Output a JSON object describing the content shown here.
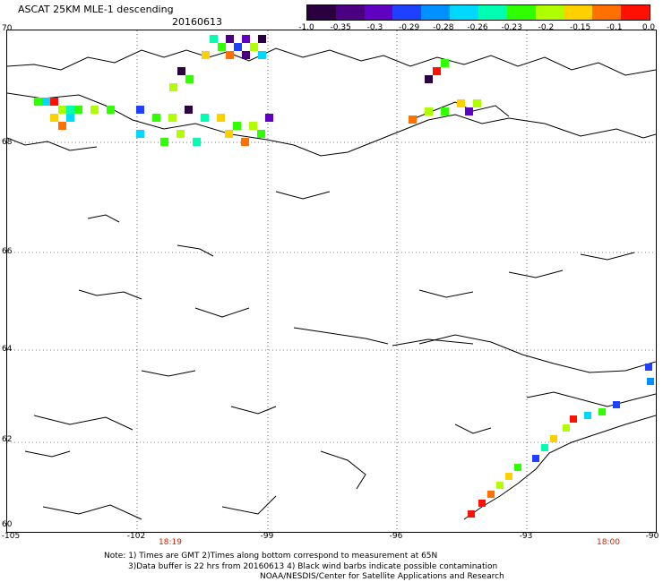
{
  "title": "ASCAT 25KM MLE-1 descending",
  "date": "20160613",
  "colorbar": {
    "colors": [
      "#2a0040",
      "#4a0080",
      "#6000c0",
      "#2040ff",
      "#0090ff",
      "#00d8ff",
      "#00ffb0",
      "#30ff00",
      "#b0ff00",
      "#ffd000",
      "#ff7000",
      "#ff1000"
    ],
    "labels": [
      "-1.0",
      "-0.35",
      "-0.3",
      "-0.29",
      "-0.28",
      "-0.26",
      "-0.23",
      "-0.2",
      "-0.15",
      "-0.1",
      "0.0"
    ]
  },
  "map": {
    "lat_labels": [
      "70",
      "68",
      "66",
      "64",
      "62",
      "60"
    ],
    "lon_labels": [
      "-105",
      "-102",
      "-99",
      "-96",
      "-93",
      "-90"
    ],
    "times": [
      "18:19",
      "18:00"
    ]
  },
  "notes": {
    "line1": "Note: 1) Times are GMT 2)Times along bottom correspond to measurement at 65N",
    "line2": "3)Data buffer is 22 hrs from 20160613 4) Black wind barbs indicate possible contamination",
    "line3": "NOAA/NESDIS/Center for Satellite Applications and Research"
  }
}
